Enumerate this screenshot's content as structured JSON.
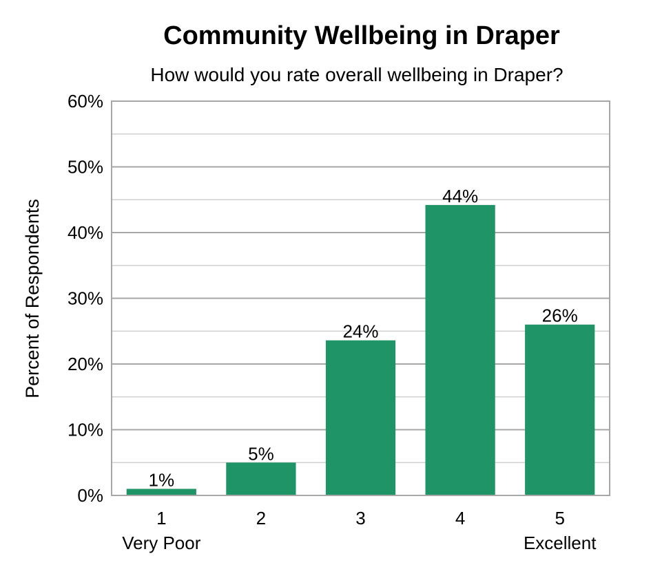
{
  "chart_data": {
    "type": "bar",
    "title": "Community Wellbeing in Draper",
    "subtitle": "How would you rate overall wellbeing in Draper?",
    "ylabel": "Percent of Respondents",
    "xlabel": "",
    "categories": [
      "1",
      "2",
      "3",
      "4",
      "5"
    ],
    "category_sublabels": [
      "Very Poor",
      "",
      "",
      "",
      "Excellent"
    ],
    "values": [
      1,
      5,
      23.6,
      44.2,
      26
    ],
    "data_labels": [
      "1%",
      "5%",
      "24%",
      "44%",
      "26%"
    ],
    "ylim": [
      0,
      60
    ],
    "yticks": [
      0,
      10,
      20,
      30,
      40,
      50,
      60
    ],
    "ytick_labels": [
      "0%",
      "10%",
      "20%",
      "30%",
      "40%",
      "50%",
      "60%"
    ],
    "grid": true,
    "legend": "none",
    "colors": {
      "bar": "#1f9467",
      "major_grid": "#a6a6a6",
      "minor_grid": "#d0d0d0",
      "frame": "#a6a6a6"
    }
  }
}
